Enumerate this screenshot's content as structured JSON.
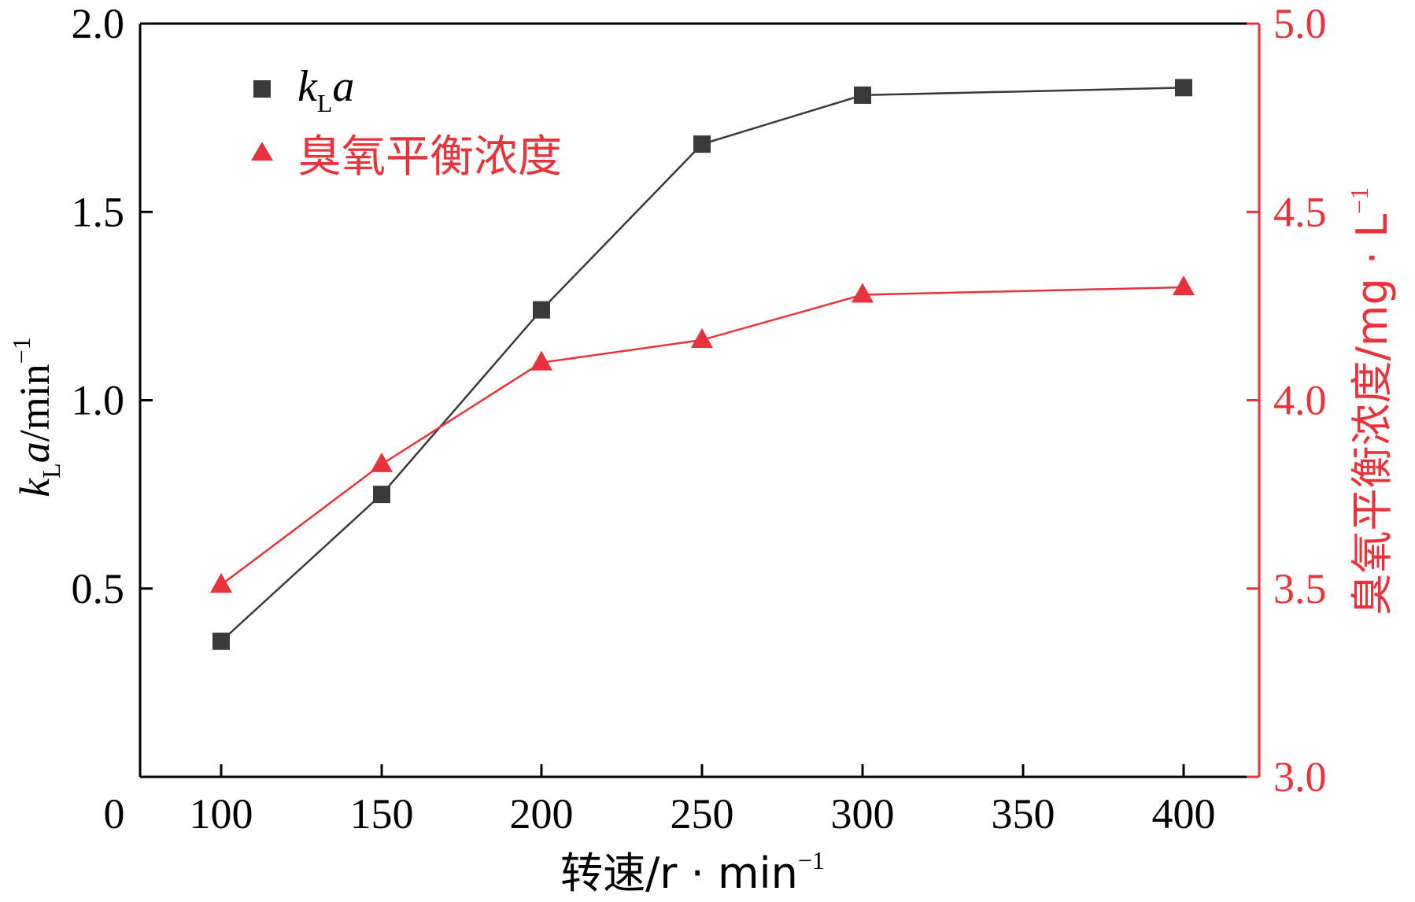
{
  "chart_data": {
    "type": "line",
    "x": [
      100,
      150,
      200,
      250,
      300,
      400
    ],
    "x_ticks": [
      "0",
      "100",
      "150",
      "200",
      "250",
      "300",
      "350",
      "400"
    ],
    "xlabel": {
      "text": "转速/r · min",
      "sup": "−1"
    },
    "left_axis": {
      "ylim": [
        0,
        2.0
      ],
      "ticks": [
        "0.5",
        "1.0",
        "1.5",
        "2.0"
      ],
      "label": {
        "k": "k",
        "sub": "L",
        "a": "a",
        "rest": "/min",
        "sup": "−1"
      }
    },
    "right_axis": {
      "ylim": [
        3.0,
        5.0
      ],
      "ticks": [
        "3.0",
        "3.5",
        "4.0",
        "4.5",
        "5.0"
      ],
      "label": {
        "text": "臭氧平衡浓度/mg · L",
        "sup": "−1"
      },
      "color": "#e8323c"
    },
    "series": [
      {
        "name": "kLa",
        "name_parts": {
          "k": "k",
          "sub": "L",
          "a": "a"
        },
        "axis": "left",
        "marker": "square",
        "color": "#3a3a3a",
        "values": [
          0.36,
          0.75,
          1.24,
          1.68,
          1.81,
          1.83
        ]
      },
      {
        "name": "臭氧平衡浓度",
        "axis": "right",
        "marker": "triangle",
        "color": "#e8323c",
        "values": [
          3.51,
          3.83,
          4.1,
          4.16,
          4.28,
          4.3
        ]
      }
    ],
    "legend": "top-left",
    "grid": false
  }
}
